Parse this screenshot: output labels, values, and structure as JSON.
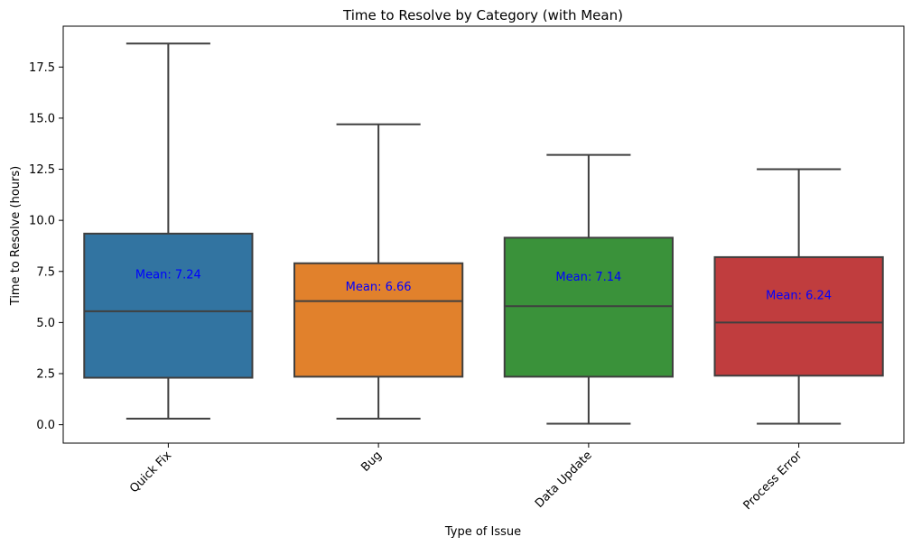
{
  "chart_data": {
    "type": "box",
    "title": "Time to Resolve by Category (with Mean)",
    "xlabel": "Type of Issue",
    "ylabel": "Time to Resolve (hours)",
    "ylim": [
      -0.9,
      19.5
    ],
    "yticks": [
      "0.0",
      "2.5",
      "5.0",
      "7.5",
      "10.0",
      "12.5",
      "15.0",
      "17.5"
    ],
    "grid": false,
    "categories": [
      "Quick Fix",
      "Bug",
      "Data Update",
      "Process Error"
    ],
    "colors": [
      "#3274a1",
      "#e1812c",
      "#3a923a",
      "#c03d3e"
    ],
    "mean_label_color": "#0000ff",
    "boxes": [
      {
        "category": "Quick Fix",
        "whisker_low": 0.3,
        "q1": 2.3,
        "median": 5.55,
        "q3": 9.35,
        "whisker_high": 18.65,
        "mean": 7.24,
        "mean_label": "Mean: 7.24"
      },
      {
        "category": "Bug",
        "whisker_low": 0.3,
        "q1": 2.35,
        "median": 6.05,
        "q3": 7.9,
        "whisker_high": 14.7,
        "mean": 6.66,
        "mean_label": "Mean: 6.66"
      },
      {
        "category": "Data Update",
        "whisker_low": 0.05,
        "q1": 2.35,
        "median": 5.8,
        "q3": 9.15,
        "whisker_high": 13.2,
        "mean": 7.14,
        "mean_label": "Mean: 7.14"
      },
      {
        "category": "Process Error",
        "whisker_low": 0.05,
        "q1": 2.4,
        "median": 5.0,
        "q3": 8.2,
        "whisker_high": 12.5,
        "mean": 6.24,
        "mean_label": "Mean: 6.24"
      }
    ]
  }
}
